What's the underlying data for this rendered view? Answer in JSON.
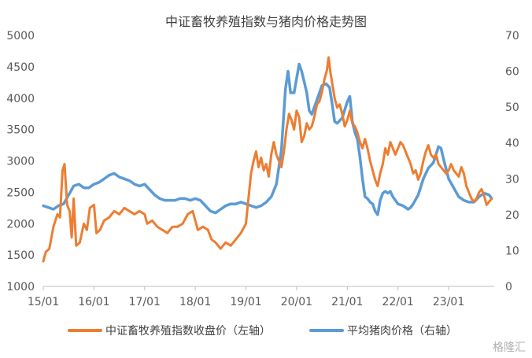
{
  "chart_data": {
    "type": "line",
    "title": "中证畜牧养殖指数与猪肉价格走势图",
    "x_ticks": [
      "15/01",
      "16/01",
      "17/01",
      "18/01",
      "19/01",
      "20/01",
      "21/01",
      "22/01",
      "23/01"
    ],
    "y_left": {
      "ticks": [
        "1000",
        "1500",
        "2000",
        "2500",
        "3000",
        "3500",
        "4000",
        "4500",
        "5000"
      ],
      "min": 1000,
      "max": 5000
    },
    "y_right": {
      "ticks": [
        "0",
        "10",
        "20",
        "30",
        "40",
        "50",
        "60",
        "70"
      ],
      "min": 0,
      "max": 70
    },
    "x_range": [
      2015.0,
      2023.9
    ],
    "series": [
      {
        "name": "中证畜牧养殖指数收盘价（左轴）",
        "axis": "left",
        "color": "#ED7D31",
        "points": [
          [
            2015.0,
            1400
          ],
          [
            2015.05,
            1550
          ],
          [
            2015.12,
            1600
          ],
          [
            2015.2,
            1950
          ],
          [
            2015.28,
            2150
          ],
          [
            2015.33,
            2100
          ],
          [
            2015.38,
            2850
          ],
          [
            2015.42,
            2950
          ],
          [
            2015.47,
            2300
          ],
          [
            2015.52,
            2200
          ],
          [
            2015.56,
            1780
          ],
          [
            2015.6,
            2400
          ],
          [
            2015.65,
            1650
          ],
          [
            2015.72,
            1700
          ],
          [
            2015.8,
            2000
          ],
          [
            2015.86,
            1900
          ],
          [
            2015.92,
            2250
          ],
          [
            2016.0,
            2300
          ],
          [
            2016.05,
            1850
          ],
          [
            2016.12,
            1900
          ],
          [
            2016.2,
            2050
          ],
          [
            2016.3,
            2100
          ],
          [
            2016.4,
            2200
          ],
          [
            2016.5,
            2150
          ],
          [
            2016.6,
            2250
          ],
          [
            2016.7,
            2200
          ],
          [
            2016.8,
            2150
          ],
          [
            2016.9,
            2200
          ],
          [
            2017.0,
            2150
          ],
          [
            2017.05,
            2000
          ],
          [
            2017.15,
            2050
          ],
          [
            2017.25,
            1950
          ],
          [
            2017.35,
            1900
          ],
          [
            2017.45,
            1850
          ],
          [
            2017.55,
            1950
          ],
          [
            2017.65,
            1950
          ],
          [
            2017.75,
            2000
          ],
          [
            2017.85,
            2150
          ],
          [
            2017.95,
            2200
          ],
          [
            2018.0,
            2050
          ],
          [
            2018.05,
            1900
          ],
          [
            2018.15,
            1950
          ],
          [
            2018.25,
            1900
          ],
          [
            2018.32,
            1750
          ],
          [
            2018.4,
            1700
          ],
          [
            2018.5,
            1600
          ],
          [
            2018.6,
            1700
          ],
          [
            2018.7,
            1650
          ],
          [
            2018.8,
            1750
          ],
          [
            2018.9,
            1850
          ],
          [
            2019.0,
            2000
          ],
          [
            2019.05,
            2400
          ],
          [
            2019.1,
            2800
          ],
          [
            2019.15,
            3000
          ],
          [
            2019.2,
            3150
          ],
          [
            2019.25,
            2900
          ],
          [
            2019.3,
            3050
          ],
          [
            2019.35,
            2850
          ],
          [
            2019.4,
            2950
          ],
          [
            2019.45,
            2750
          ],
          [
            2019.5,
            3100
          ],
          [
            2019.55,
            3300
          ],
          [
            2019.6,
            3100
          ],
          [
            2019.65,
            3000
          ],
          [
            2019.7,
            2900
          ],
          [
            2019.75,
            3150
          ],
          [
            2019.8,
            3500
          ],
          [
            2019.85,
            3750
          ],
          [
            2019.9,
            3650
          ],
          [
            2019.95,
            3500
          ],
          [
            2020.0,
            3800
          ],
          [
            2020.05,
            3700
          ],
          [
            2020.1,
            3300
          ],
          [
            2020.15,
            3400
          ],
          [
            2020.2,
            3600
          ],
          [
            2020.25,
            3500
          ],
          [
            2020.3,
            3550
          ],
          [
            2020.35,
            3700
          ],
          [
            2020.4,
            3900
          ],
          [
            2020.45,
            3950
          ],
          [
            2020.5,
            4100
          ],
          [
            2020.55,
            4300
          ],
          [
            2020.6,
            4450
          ],
          [
            2020.63,
            4650
          ],
          [
            2020.67,
            4400
          ],
          [
            2020.7,
            4250
          ],
          [
            2020.75,
            4000
          ],
          [
            2020.8,
            3850
          ],
          [
            2020.85,
            3900
          ],
          [
            2020.9,
            3750
          ],
          [
            2020.95,
            3550
          ],
          [
            2021.0,
            3650
          ],
          [
            2021.05,
            3800
          ],
          [
            2021.1,
            3600
          ],
          [
            2021.15,
            3550
          ],
          [
            2021.2,
            3450
          ],
          [
            2021.25,
            3300
          ],
          [
            2021.3,
            3200
          ],
          [
            2021.35,
            3350
          ],
          [
            2021.4,
            3200
          ],
          [
            2021.45,
            3000
          ],
          [
            2021.5,
            2850
          ],
          [
            2021.55,
            2700
          ],
          [
            2021.6,
            2600
          ],
          [
            2021.65,
            2800
          ],
          [
            2021.7,
            2950
          ],
          [
            2021.75,
            3200
          ],
          [
            2021.8,
            3100
          ],
          [
            2021.85,
            3300
          ],
          [
            2021.9,
            3200
          ],
          [
            2021.95,
            3100
          ],
          [
            2022.0,
            3200
          ],
          [
            2022.05,
            3300
          ],
          [
            2022.1,
            3250
          ],
          [
            2022.15,
            3150
          ],
          [
            2022.2,
            3050
          ],
          [
            2022.25,
            2950
          ],
          [
            2022.3,
            2800
          ],
          [
            2022.35,
            2850
          ],
          [
            2022.4,
            2700
          ],
          [
            2022.45,
            2800
          ],
          [
            2022.5,
            3000
          ],
          [
            2022.55,
            3150
          ],
          [
            2022.6,
            3250
          ],
          [
            2022.65,
            3100
          ],
          [
            2022.7,
            3050
          ],
          [
            2022.75,
            3100
          ],
          [
            2022.8,
            2950
          ],
          [
            2022.85,
            2900
          ],
          [
            2022.9,
            2850
          ],
          [
            2022.95,
            2800
          ],
          [
            2023.0,
            2850
          ],
          [
            2023.05,
            2950
          ],
          [
            2023.1,
            2850
          ],
          [
            2023.15,
            2800
          ],
          [
            2023.2,
            2750
          ],
          [
            2023.25,
            2900
          ],
          [
            2023.3,
            2800
          ],
          [
            2023.35,
            2600
          ],
          [
            2023.4,
            2500
          ],
          [
            2023.45,
            2400
          ],
          [
            2023.5,
            2350
          ],
          [
            2023.55,
            2400
          ],
          [
            2023.6,
            2500
          ],
          [
            2023.65,
            2550
          ],
          [
            2023.7,
            2450
          ],
          [
            2023.75,
            2300
          ],
          [
            2023.8,
            2350
          ],
          [
            2023.85,
            2400
          ]
        ]
      },
      {
        "name": "平均猪肉价格（右轴）",
        "axis": "right",
        "color": "#5B9BD5",
        "points": [
          [
            2015.0,
            22.5
          ],
          [
            2015.1,
            22.0
          ],
          [
            2015.2,
            21.5
          ],
          [
            2015.3,
            22.5
          ],
          [
            2015.4,
            23.0
          ],
          [
            2015.5,
            25.5
          ],
          [
            2015.6,
            28.0
          ],
          [
            2015.7,
            28.5
          ],
          [
            2015.8,
            27.5
          ],
          [
            2015.9,
            27.5
          ],
          [
            2016.0,
            28.5
          ],
          [
            2016.1,
            29.0
          ],
          [
            2016.2,
            30.0
          ],
          [
            2016.3,
            31.0
          ],
          [
            2016.4,
            31.5
          ],
          [
            2016.5,
            30.5
          ],
          [
            2016.6,
            30.0
          ],
          [
            2016.7,
            29.5
          ],
          [
            2016.8,
            28.5
          ],
          [
            2016.9,
            28.0
          ],
          [
            2017.0,
            28.5
          ],
          [
            2017.1,
            27.0
          ],
          [
            2017.2,
            25.5
          ],
          [
            2017.3,
            24.5
          ],
          [
            2017.4,
            24.0
          ],
          [
            2017.5,
            24.0
          ],
          [
            2017.6,
            24.0
          ],
          [
            2017.7,
            24.5
          ],
          [
            2017.8,
            24.5
          ],
          [
            2017.9,
            24.0
          ],
          [
            2018.0,
            24.5
          ],
          [
            2018.1,
            24.0
          ],
          [
            2018.2,
            22.5
          ],
          [
            2018.3,
            21.0
          ],
          [
            2018.4,
            20.5
          ],
          [
            2018.5,
            21.5
          ],
          [
            2018.6,
            22.5
          ],
          [
            2018.7,
            23.0
          ],
          [
            2018.8,
            23.0
          ],
          [
            2018.9,
            23.5
          ],
          [
            2019.0,
            23.0
          ],
          [
            2019.1,
            22.5
          ],
          [
            2019.2,
            22.0
          ],
          [
            2019.3,
            22.5
          ],
          [
            2019.4,
            23.5
          ],
          [
            2019.5,
            25.0
          ],
          [
            2019.6,
            28.5
          ],
          [
            2019.7,
            38.0
          ],
          [
            2019.78,
            55.0
          ],
          [
            2019.83,
            60.0
          ],
          [
            2019.88,
            54.0
          ],
          [
            2019.95,
            54.0
          ],
          [
            2020.05,
            62.0
          ],
          [
            2020.1,
            60.0
          ],
          [
            2020.15,
            57.0
          ],
          [
            2020.2,
            54.0
          ],
          [
            2020.25,
            49.0
          ],
          [
            2020.3,
            48.0
          ],
          [
            2020.4,
            52.0
          ],
          [
            2020.5,
            56.0
          ],
          [
            2020.58,
            56.5
          ],
          [
            2020.65,
            55.5
          ],
          [
            2020.7,
            51.0
          ],
          [
            2020.75,
            46.0
          ],
          [
            2020.8,
            45.5
          ],
          [
            2020.9,
            47.0
          ],
          [
            2021.0,
            51.5
          ],
          [
            2021.05,
            53.0
          ],
          [
            2021.1,
            46.0
          ],
          [
            2021.15,
            43.0
          ],
          [
            2021.2,
            41.0
          ],
          [
            2021.25,
            36.0
          ],
          [
            2021.3,
            30.0
          ],
          [
            2021.35,
            25.0
          ],
          [
            2021.4,
            24.5
          ],
          [
            2021.45,
            23.5
          ],
          [
            2021.5,
            23.0
          ],
          [
            2021.55,
            21.0
          ],
          [
            2021.6,
            20.0
          ],
          [
            2021.65,
            24.0
          ],
          [
            2021.7,
            26.0
          ],
          [
            2021.75,
            26.5
          ],
          [
            2021.8,
            26.0
          ],
          [
            2021.85,
            26.5
          ],
          [
            2021.9,
            25.0
          ],
          [
            2021.95,
            24.0
          ],
          [
            2022.0,
            23.0
          ],
          [
            2022.1,
            22.5
          ],
          [
            2022.2,
            21.5
          ],
          [
            2022.25,
            22.0
          ],
          [
            2022.3,
            23.0
          ],
          [
            2022.4,
            25.5
          ],
          [
            2022.5,
            30.0
          ],
          [
            2022.6,
            33.0
          ],
          [
            2022.7,
            34.5
          ],
          [
            2022.8,
            39.0
          ],
          [
            2022.85,
            38.5
          ],
          [
            2022.9,
            35.5
          ],
          [
            2023.0,
            30.0
          ],
          [
            2023.1,
            27.5
          ],
          [
            2023.2,
            25.0
          ],
          [
            2023.3,
            24.0
          ],
          [
            2023.4,
            23.5
          ],
          [
            2023.5,
            23.5
          ],
          [
            2023.6,
            25.0
          ],
          [
            2023.7,
            26.0
          ],
          [
            2023.8,
            25.5
          ],
          [
            2023.85,
            24.5
          ]
        ]
      }
    ]
  },
  "watermark": "格隆汇"
}
